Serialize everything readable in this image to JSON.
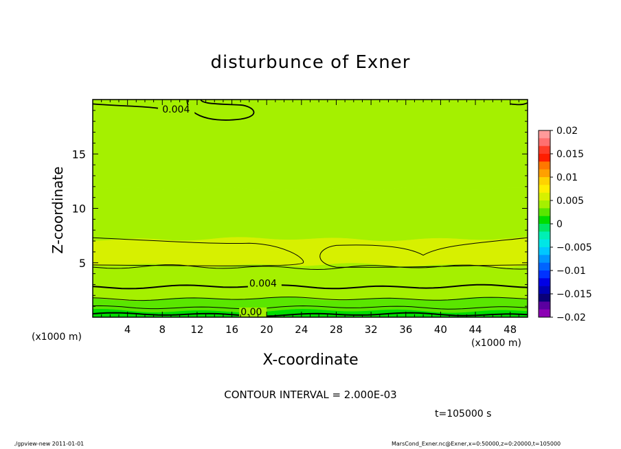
{
  "page": {
    "footer_left": "./gpview-new   2011-01-01",
    "footer_right": "MarsCond_Exner.nc@Exner,x=0:50000,z=0:20000,t=105000"
  },
  "chart_data": {
    "type": "heatmap",
    "title": "disturbunce of Exner",
    "xlabel": "X-coordinate",
    "ylabel": "Z-coordinate",
    "x_unit_left": "(x1000 m)",
    "x_unit_right": "(x1000 m)",
    "xlim": [
      0,
      50
    ],
    "ylim": [
      0,
      20
    ],
    "x_ticks": [
      4,
      8,
      12,
      16,
      20,
      24,
      28,
      32,
      36,
      40,
      44,
      48
    ],
    "y_ticks": [
      5,
      10,
      15
    ],
    "contour_interval_label": "CONTOUR INTERVAL = 2.000E-03",
    "time_label": "t=105000 s",
    "contour_labels": [
      {
        "text": "0.004",
        "x": 8.0,
        "z": 18.8
      },
      {
        "text": "0.004",
        "x": 18.0,
        "z": 2.8
      },
      {
        "text": "0.00",
        "x": 17.0,
        "z": 0.2
      }
    ],
    "field_bands": [
      {
        "z_from": 0.0,
        "z_to": 0.6,
        "value_range": [
          0.001,
          0.002
        ]
      },
      {
        "z_from": 0.6,
        "z_to": 1.7,
        "value_range": [
          0.002,
          0.003
        ]
      },
      {
        "z_from": 1.7,
        "z_to": 2.7,
        "value_range": [
          0.003,
          0.004
        ]
      },
      {
        "z_from": 2.7,
        "z_to": 4.8,
        "value_range": [
          0.004,
          0.005
        ]
      },
      {
        "z_from": 4.8,
        "z_to": 7.2,
        "value_range": [
          0.005,
          0.006
        ]
      },
      {
        "z_from": 7.2,
        "z_to": 11.8,
        "value_range": [
          0.004,
          0.005
        ]
      },
      {
        "z_from": 11.8,
        "z_to": 20.0,
        "value_range": [
          0.003,
          0.004
        ]
      }
    ],
    "colorbar": {
      "min": -0.02,
      "max": 0.02,
      "tick_labels": [
        "0.02",
        "0.015",
        "0.01",
        "0.005",
        "0",
        "−0.005",
        "−0.01",
        "−0.015",
        "−0.02"
      ],
      "tick_values": [
        0.02,
        0.015,
        0.01,
        0.005,
        0,
        -0.005,
        -0.01,
        -0.015,
        -0.02
      ],
      "colors_top_to_bottom": [
        "#ff9a9a",
        "#ff7070",
        "#ff3c28",
        "#ff1e00",
        "#ff7800",
        "#ffa000",
        "#ffd200",
        "#ffee00",
        "#d7f000",
        "#a5f000",
        "#5ae600",
        "#00dc00",
        "#00e664",
        "#00f0b4",
        "#00e6e6",
        "#00c8ff",
        "#0096ff",
        "#0064ff",
        "#0032ff",
        "#0000e6",
        "#0000b4",
        "#0a0078",
        "#5a00a0",
        "#8c00b4"
      ]
    }
  }
}
